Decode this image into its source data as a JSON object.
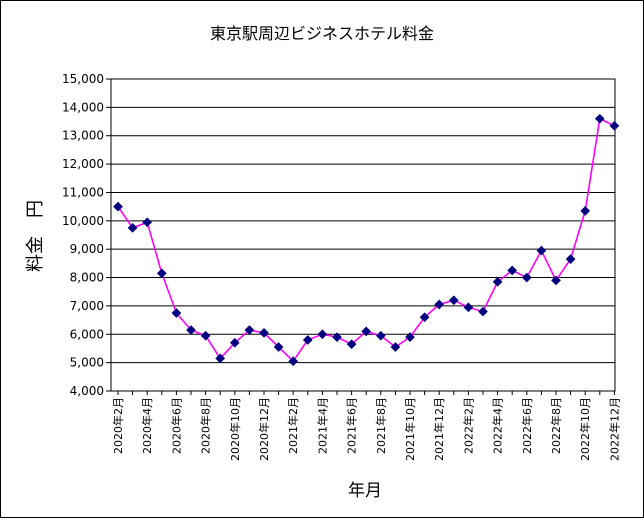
{
  "chart_data": {
    "type": "line",
    "title": "東京駅周辺ビジネスホテル料金",
    "xlabel": "年月",
    "ylabel": "料金　円",
    "ylim": [
      4000,
      15000
    ],
    "yticks": [
      4000,
      5000,
      6000,
      7000,
      8000,
      9000,
      10000,
      11000,
      12000,
      13000,
      14000,
      15000
    ],
    "ytick_labels": [
      "4,000",
      "5,000",
      "6,000",
      "7,000",
      "8,000",
      "9,000",
      "10,000",
      "11,000",
      "12,000",
      "13,000",
      "14,000",
      "15,000"
    ],
    "grid": true,
    "legend": "none",
    "line_color": "#FF00FF",
    "marker_color": "#000080",
    "x": [
      "2020年2月",
      "2020年3月",
      "2020年4月",
      "2020年5月",
      "2020年6月",
      "2020年7月",
      "2020年8月",
      "2020年9月",
      "2020年10月",
      "2020年11月",
      "2020年12月",
      "2021年1月",
      "2021年2月",
      "2021年3月",
      "2021年4月",
      "2021年5月",
      "2021年6月",
      "2021年7月",
      "2021年8月",
      "2021年9月",
      "2021年10月",
      "2021年11月",
      "2021年12月",
      "2022年1月",
      "2022年2月",
      "2022年3月",
      "2022年4月",
      "2022年5月",
      "2022年6月",
      "2022年7月",
      "2022年8月",
      "2022年9月",
      "2022年10月",
      "2022年11月",
      "2022年12月"
    ],
    "xtick_labels": [
      "2020年2月",
      "2020年4月",
      "2020年6月",
      "2020年8月",
      "2020年10月",
      "2020年12月",
      "2021年2月",
      "2021年4月",
      "2021年6月",
      "2021年8月",
      "2021年10月",
      "2021年12月",
      "2022年2月",
      "2022年4月",
      "2022年6月",
      "2022年8月",
      "2022年10月",
      "2022年12月"
    ],
    "series": [
      {
        "values": [
          10500,
          9750,
          9950,
          8150,
          6750,
          6150,
          5950,
          5150,
          5700,
          6150,
          6050,
          5550,
          5050,
          5800,
          6000,
          5900,
          5650,
          6100,
          5950,
          5550,
          5900,
          6600,
          7050,
          7200,
          6950,
          6800,
          7850,
          8250,
          8000,
          8950,
          7900,
          8650,
          10350,
          13600,
          13350
        ]
      }
    ]
  }
}
